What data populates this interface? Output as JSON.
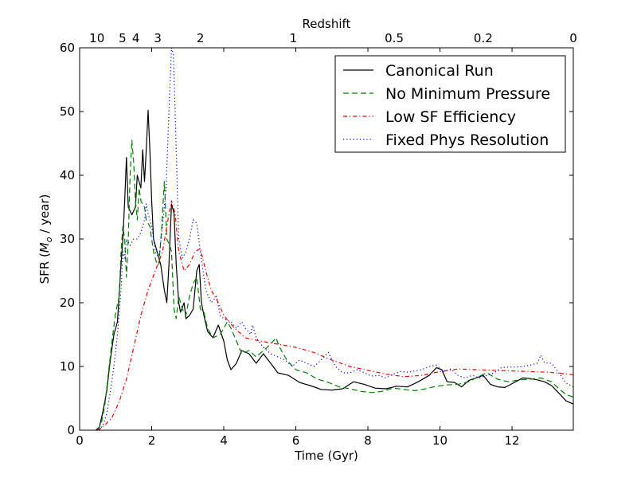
{
  "chart_data": {
    "type": "line",
    "xlabel": "Time (Gyr)",
    "ylabel_prefix": "SFR (",
    "ylabel_symbol": "M",
    "ylabel_subscript": "o",
    "ylabel_suffix": " / year)",
    "top_axis_label": "Redshift",
    "xlim": [
      0,
      13.7
    ],
    "ylim": [
      0,
      60
    ],
    "xticks": [
      0,
      2,
      4,
      6,
      8,
      10,
      12
    ],
    "xtick_labels": [
      "0",
      "2",
      "4",
      "6",
      "8",
      "10",
      "12"
    ],
    "yticks": [
      0,
      10,
      20,
      30,
      40,
      50,
      60
    ],
    "ytick_labels": [
      "0",
      "10",
      "20",
      "30",
      "40",
      "50",
      "60"
    ],
    "top_ticks": [
      {
        "label": "10",
        "time": 0.48
      },
      {
        "label": "5",
        "time": 1.19
      },
      {
        "label": "4",
        "time": 1.56
      },
      {
        "label": "3",
        "time": 2.17
      },
      {
        "label": "2",
        "time": 3.35
      },
      {
        "label": "1",
        "time": 5.93
      },
      {
        "label": "0.5",
        "time": 8.73
      },
      {
        "label": "0.2",
        "time": 11.2
      },
      {
        "label": "0",
        "time": 13.7
      }
    ],
    "legend_position": "top-right",
    "series": [
      {
        "name": "Canonical Run",
        "color": "#000000",
        "dash": "solid",
        "points": [
          [
            0.45,
            0
          ],
          [
            0.55,
            0.5
          ],
          [
            0.65,
            3
          ],
          [
            0.75,
            6
          ],
          [
            0.85,
            11
          ],
          [
            0.95,
            15
          ],
          [
            1.05,
            17
          ],
          [
            1.15,
            26
          ],
          [
            1.2,
            30
          ],
          [
            1.25,
            36
          ],
          [
            1.3,
            42.8
          ],
          [
            1.35,
            35
          ],
          [
            1.45,
            33.8
          ],
          [
            1.55,
            35
          ],
          [
            1.6,
            40
          ],
          [
            1.7,
            38
          ],
          [
            1.75,
            44
          ],
          [
            1.8,
            39
          ],
          [
            1.85,
            44
          ],
          [
            1.9,
            50.2
          ],
          [
            1.95,
            44
          ],
          [
            2.0,
            36
          ],
          [
            2.05,
            30
          ],
          [
            2.15,
            28
          ],
          [
            2.25,
            26
          ],
          [
            2.35,
            22
          ],
          [
            2.42,
            20
          ],
          [
            2.48,
            26
          ],
          [
            2.55,
            35.5
          ],
          [
            2.62,
            34
          ],
          [
            2.68,
            26
          ],
          [
            2.75,
            20
          ],
          [
            2.8,
            18.5
          ],
          [
            2.9,
            20
          ],
          [
            2.95,
            17.5
          ],
          [
            3.05,
            18
          ],
          [
            3.15,
            19
          ],
          [
            3.25,
            25
          ],
          [
            3.32,
            26
          ],
          [
            3.38,
            20
          ],
          [
            3.45,
            18
          ],
          [
            3.55,
            15.5
          ],
          [
            3.7,
            14.5
          ],
          [
            3.85,
            16.5
          ],
          [
            4.0,
            14
          ],
          [
            4.1,
            11
          ],
          [
            4.2,
            9.5
          ],
          [
            4.35,
            10.5
          ],
          [
            4.5,
            12.5
          ],
          [
            4.7,
            12
          ],
          [
            4.9,
            10.5
          ],
          [
            5.1,
            12
          ],
          [
            5.3,
            10.5
          ],
          [
            5.5,
            9
          ],
          [
            5.8,
            8.6
          ],
          [
            6.1,
            7.5
          ],
          [
            6.4,
            7
          ],
          [
            6.7,
            6.4
          ],
          [
            7.0,
            6.3
          ],
          [
            7.3,
            6.5
          ],
          [
            7.6,
            7.6
          ],
          [
            7.9,
            7.2
          ],
          [
            8.2,
            6.6
          ],
          [
            8.5,
            6.5
          ],
          [
            8.8,
            6.9
          ],
          [
            9.1,
            6.8
          ],
          [
            9.4,
            7.6
          ],
          [
            9.7,
            8.6
          ],
          [
            9.9,
            9.8
          ],
          [
            10.05,
            9.5
          ],
          [
            10.2,
            7.6
          ],
          [
            10.4,
            7.5
          ],
          [
            10.6,
            6.8
          ],
          [
            10.8,
            7.8
          ],
          [
            11.0,
            8.2
          ],
          [
            11.2,
            8.6
          ],
          [
            11.4,
            7.2
          ],
          [
            11.6,
            6.8
          ],
          [
            11.8,
            6.7
          ],
          [
            12.1,
            7.6
          ],
          [
            12.3,
            8.2
          ],
          [
            12.5,
            8.1
          ],
          [
            12.7,
            7.9
          ],
          [
            12.9,
            7.6
          ],
          [
            13.1,
            7
          ],
          [
            13.3,
            5.8
          ],
          [
            13.5,
            4.6
          ],
          [
            13.7,
            4.1
          ]
        ]
      },
      {
        "name": "No Minimum Pressure",
        "color": "#008000",
        "dash": "dashed",
        "points": [
          [
            0.5,
            0
          ],
          [
            0.6,
            1
          ],
          [
            0.7,
            4
          ],
          [
            0.8,
            9
          ],
          [
            0.9,
            14
          ],
          [
            1.0,
            18.5
          ],
          [
            1.1,
            21
          ],
          [
            1.15,
            28
          ],
          [
            1.2,
            32
          ],
          [
            1.25,
            30
          ],
          [
            1.3,
            24
          ],
          [
            1.35,
            30
          ],
          [
            1.4,
            40
          ],
          [
            1.45,
            45.5
          ],
          [
            1.5,
            42
          ],
          [
            1.55,
            36
          ],
          [
            1.6,
            33
          ],
          [
            1.65,
            38
          ],
          [
            1.7,
            36
          ],
          [
            1.8,
            35
          ],
          [
            1.85,
            33
          ],
          [
            1.95,
            32
          ],
          [
            2.05,
            28
          ],
          [
            2.15,
            26
          ],
          [
            2.2,
            26
          ],
          [
            2.28,
            32
          ],
          [
            2.35,
            39
          ],
          [
            2.42,
            30
          ],
          [
            2.5,
            29
          ],
          [
            2.55,
            28
          ],
          [
            2.62,
            19
          ],
          [
            2.68,
            17.5
          ],
          [
            2.75,
            21
          ],
          [
            2.85,
            19
          ],
          [
            2.95,
            18
          ],
          [
            3.05,
            21
          ],
          [
            3.15,
            23
          ],
          [
            3.25,
            24
          ],
          [
            3.35,
            19
          ],
          [
            3.45,
            18.5
          ],
          [
            3.55,
            16
          ],
          [
            3.7,
            14.5
          ],
          [
            3.9,
            15
          ],
          [
            4.0,
            16
          ],
          [
            4.1,
            17
          ],
          [
            4.2,
            16
          ],
          [
            4.35,
            14
          ],
          [
            4.5,
            12
          ],
          [
            4.7,
            12.5
          ],
          [
            4.9,
            11.5
          ],
          [
            5.1,
            12.5
          ],
          [
            5.3,
            13.5
          ],
          [
            5.45,
            14.5
          ],
          [
            5.55,
            13
          ],
          [
            5.75,
            11
          ],
          [
            6.0,
            9.5
          ],
          [
            6.3,
            9
          ],
          [
            6.6,
            8
          ],
          [
            6.9,
            7.5
          ],
          [
            7.2,
            6.8
          ],
          [
            7.5,
            6.5
          ],
          [
            7.8,
            6.1
          ],
          [
            8.1,
            5.9
          ],
          [
            8.4,
            6.1
          ],
          [
            8.7,
            6.6
          ],
          [
            9.0,
            6.4
          ],
          [
            9.3,
            6.2
          ],
          [
            9.6,
            6.5
          ],
          [
            9.9,
            6.9
          ],
          [
            10.2,
            7.1
          ],
          [
            10.5,
            7.2
          ],
          [
            10.8,
            7.6
          ],
          [
            11.1,
            8.5
          ],
          [
            11.3,
            9
          ],
          [
            11.6,
            8
          ],
          [
            11.9,
            7.6
          ],
          [
            12.2,
            7.9
          ],
          [
            12.5,
            8
          ],
          [
            12.8,
            8.2
          ],
          [
            13.1,
            7.6
          ],
          [
            13.3,
            6.5
          ],
          [
            13.5,
            5.6
          ],
          [
            13.7,
            5.2
          ]
        ]
      },
      {
        "name": "Low SF Efficiency",
        "color": "#ff0000",
        "dash": "dashdot",
        "points": [
          [
            0.5,
            0
          ],
          [
            0.7,
            0.8
          ],
          [
            0.9,
            2
          ],
          [
            1.1,
            4.5
          ],
          [
            1.3,
            8
          ],
          [
            1.5,
            13
          ],
          [
            1.7,
            18
          ],
          [
            1.9,
            22
          ],
          [
            2.1,
            25
          ],
          [
            2.3,
            28
          ],
          [
            2.45,
            33
          ],
          [
            2.55,
            36
          ],
          [
            2.65,
            34
          ],
          [
            2.75,
            28
          ],
          [
            2.9,
            25
          ],
          [
            3.05,
            26
          ],
          [
            3.2,
            28
          ],
          [
            3.35,
            28.5
          ],
          [
            3.5,
            25
          ],
          [
            3.65,
            22
          ],
          [
            3.85,
            20
          ],
          [
            4.0,
            18
          ],
          [
            4.3,
            16
          ],
          [
            4.6,
            14.5
          ],
          [
            5.0,
            14
          ],
          [
            5.5,
            13.5
          ],
          [
            6.0,
            13
          ],
          [
            6.5,
            12.2
          ],
          [
            7.0,
            11
          ],
          [
            7.5,
            10
          ],
          [
            8.0,
            9.4
          ],
          [
            8.5,
            8.8
          ],
          [
            9.0,
            8.4
          ],
          [
            9.5,
            8.6
          ],
          [
            10.0,
            9.2
          ],
          [
            10.5,
            9.6
          ],
          [
            11.0,
            9.5
          ],
          [
            11.5,
            9.4
          ],
          [
            12.0,
            9.3
          ],
          [
            12.5,
            9.2
          ],
          [
            13.0,
            9.1
          ],
          [
            13.4,
            8.9
          ],
          [
            13.7,
            8.7
          ]
        ]
      },
      {
        "name": "Fixed Phys Resolution",
        "color": "#0000ff",
        "dash": "dotted",
        "points": [
          [
            0.55,
            0
          ],
          [
            0.65,
            0.8
          ],
          [
            0.75,
            2.5
          ],
          [
            0.85,
            6
          ],
          [
            0.95,
            10
          ],
          [
            1.05,
            15
          ],
          [
            1.15,
            22
          ],
          [
            1.2,
            28
          ],
          [
            1.25,
            27
          ],
          [
            1.3,
            30
          ],
          [
            1.4,
            29
          ],
          [
            1.5,
            30
          ],
          [
            1.6,
            30
          ],
          [
            1.7,
            31
          ],
          [
            1.8,
            33
          ],
          [
            1.85,
            35.5
          ],
          [
            1.9,
            34
          ],
          [
            2.0,
            32
          ],
          [
            2.1,
            28
          ],
          [
            2.2,
            27
          ],
          [
            2.3,
            32
          ],
          [
            2.4,
            38
          ],
          [
            2.5,
            53
          ],
          [
            2.55,
            60
          ],
          [
            2.6,
            59
          ],
          [
            2.65,
            50
          ],
          [
            2.7,
            40
          ],
          [
            2.75,
            30
          ],
          [
            2.85,
            27
          ],
          [
            2.95,
            28
          ],
          [
            3.05,
            30
          ],
          [
            3.15,
            33
          ],
          [
            3.25,
            32.5
          ],
          [
            3.35,
            28
          ],
          [
            3.5,
            22
          ],
          [
            3.65,
            20
          ],
          [
            3.8,
            21
          ],
          [
            3.9,
            18
          ],
          [
            4.0,
            17.5
          ],
          [
            4.2,
            17
          ],
          [
            4.35,
            16
          ],
          [
            4.5,
            17
          ],
          [
            4.6,
            16
          ],
          [
            4.75,
            15
          ],
          [
            4.8,
            16.5
          ],
          [
            4.9,
            14.5
          ],
          [
            5.1,
            13
          ],
          [
            5.3,
            12
          ],
          [
            5.5,
            11.5
          ],
          [
            5.7,
            11
          ],
          [
            5.9,
            10
          ],
          [
            6.1,
            11
          ],
          [
            6.3,
            10.5
          ],
          [
            6.5,
            10
          ],
          [
            6.7,
            11
          ],
          [
            6.9,
            12.2
          ],
          [
            7.1,
            10
          ],
          [
            7.3,
            9
          ],
          [
            7.5,
            9
          ],
          [
            7.7,
            9.5
          ],
          [
            7.9,
            9
          ],
          [
            8.1,
            8.5
          ],
          [
            8.3,
            8.6
          ],
          [
            8.5,
            8.2
          ],
          [
            8.7,
            8.8
          ],
          [
            8.9,
            9.2
          ],
          [
            9.1,
            9.1
          ],
          [
            9.3,
            9.3
          ],
          [
            9.5,
            9.5
          ],
          [
            9.7,
            10
          ],
          [
            9.9,
            10.2
          ],
          [
            10.1,
            9.2
          ],
          [
            10.3,
            9.6
          ],
          [
            10.5,
            8.6
          ],
          [
            10.7,
            8.2
          ],
          [
            10.9,
            8.6
          ],
          [
            11.1,
            8.2
          ],
          [
            11.3,
            8.6
          ],
          [
            11.5,
            9
          ],
          [
            11.7,
            9.8
          ],
          [
            11.9,
            9.9
          ],
          [
            12.1,
            9.9
          ],
          [
            12.3,
            10
          ],
          [
            12.5,
            10.2
          ],
          [
            12.7,
            10.5
          ],
          [
            12.8,
            11.8
          ],
          [
            12.9,
            10.6
          ],
          [
            13.1,
            10.5
          ],
          [
            13.3,
            9
          ],
          [
            13.5,
            7.4
          ],
          [
            13.7,
            6.8
          ]
        ]
      }
    ]
  }
}
